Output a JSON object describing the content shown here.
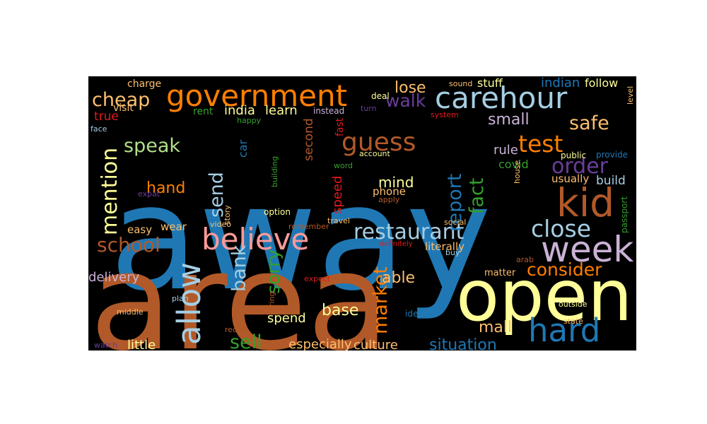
{
  "word_cloud": {
    "background": "#000000",
    "words": [
      {
        "text": "away",
        "color": "#1f78b4"
      },
      {
        "text": "area",
        "color": "#b15928"
      },
      {
        "text": "open",
        "color": "#ffff99"
      },
      {
        "text": "government",
        "color": "#ff7f00"
      },
      {
        "text": "carehour",
        "color": "#a6cee3"
      },
      {
        "text": "believe",
        "color": "#fb9a99"
      },
      {
        "text": "kid",
        "color": "#b15928"
      },
      {
        "text": "week",
        "color": "#cab2d6"
      },
      {
        "text": "hard",
        "color": "#1f78b4"
      },
      {
        "text": "allow",
        "color": "#a6cee3"
      },
      {
        "text": "restaurant",
        "color": "#a6cee3"
      },
      {
        "text": "cheap",
        "color": "#fdbf6f"
      },
      {
        "text": "guess",
        "color": "#b15928"
      },
      {
        "text": "test",
        "color": "#ff7f00"
      },
      {
        "text": "safe",
        "color": "#fdbf6f"
      },
      {
        "text": "order",
        "color": "#6a3d9a"
      },
      {
        "text": "close",
        "color": "#a6cee3"
      },
      {
        "text": "mention",
        "color": "#ffff99"
      },
      {
        "text": "school",
        "color": "#b15928"
      },
      {
        "text": "speak",
        "color": "#b2df8a"
      },
      {
        "text": "send",
        "color": "#a6cee3"
      },
      {
        "text": "report",
        "color": "#1f78b4"
      },
      {
        "text": "fact",
        "color": "#33a02c"
      },
      {
        "text": "market",
        "color": "#ff7f00"
      },
      {
        "text": "bank",
        "color": "#a6cee3"
      },
      {
        "text": "sorry",
        "color": "#33a02c"
      },
      {
        "text": "sell",
        "color": "#33a02c"
      },
      {
        "text": "consider",
        "color": "#ff7f00"
      },
      {
        "text": "walk",
        "color": "#6a3d9a"
      },
      {
        "text": "lose",
        "color": "#fdbf6f"
      },
      {
        "text": "small",
        "color": "#cab2d6"
      },
      {
        "text": "hand",
        "color": "#ff7f00"
      },
      {
        "text": "mind",
        "color": "#ffff99"
      },
      {
        "text": "able",
        "color": "#fdbf6f"
      },
      {
        "text": "base",
        "color": "#ffff99"
      },
      {
        "text": "mall",
        "color": "#fdbf6f"
      },
      {
        "text": "situation",
        "color": "#1f78b4"
      },
      {
        "text": "delivery",
        "color": "#cab2d6"
      },
      {
        "text": "culture",
        "color": "#fdbf6f"
      },
      {
        "text": "little",
        "color": "#ffff99"
      },
      {
        "text": "especially",
        "color": "#fdbf6f"
      },
      {
        "text": "spend",
        "color": "#ffff99"
      },
      {
        "text": "india",
        "color": "#ffff99"
      },
      {
        "text": "learn",
        "color": "#ffff99"
      },
      {
        "text": "rule",
        "color": "#cab2d6"
      },
      {
        "text": "covid",
        "color": "#33a02c"
      },
      {
        "text": "indian",
        "color": "#1f78b4"
      },
      {
        "text": "follow",
        "color": "#ffff99"
      },
      {
        "text": "stuff",
        "color": "#ffff99"
      },
      {
        "text": "build",
        "color": "#a6cee3"
      },
      {
        "text": "usually",
        "color": "#fdbf6f"
      },
      {
        "text": "phone",
        "color": "#fdbf6f"
      },
      {
        "text": "speed",
        "color": "#e31a1c"
      },
      {
        "text": "true",
        "color": "#e31a1c"
      },
      {
        "text": "visit",
        "color": "#fdbf6f"
      },
      {
        "text": "charge",
        "color": "#fdbf6f"
      },
      {
        "text": "rent",
        "color": "#33a02c"
      },
      {
        "text": "easy",
        "color": "#fdbf6f"
      },
      {
        "text": "wear",
        "color": "#fdbf6f"
      },
      {
        "text": "literally",
        "color": "#fdbf6f"
      },
      {
        "text": "matter",
        "color": "#fdbf6f"
      },
      {
        "text": "second",
        "color": "#b15928"
      },
      {
        "text": "car",
        "color": "#1f78b4"
      },
      {
        "text": "happy",
        "color": "#33a02c"
      },
      {
        "text": "instead",
        "color": "#cab2d6"
      },
      {
        "text": "turn",
        "color": "#6a3d9a"
      },
      {
        "text": "fast",
        "color": "#e31a1c"
      },
      {
        "text": "deal",
        "color": "#ffff99"
      },
      {
        "text": "sound",
        "color": "#fdbf6f"
      },
      {
        "text": "system",
        "color": "#e31a1c"
      },
      {
        "text": "account",
        "color": "#ffff99"
      },
      {
        "text": "word",
        "color": "#33a02c"
      },
      {
        "text": "public",
        "color": "#ffff99"
      },
      {
        "text": "provide",
        "color": "#1f78b4"
      },
      {
        "text": "level",
        "color": "#fdbf6f"
      },
      {
        "text": "passport",
        "color": "#33a02c"
      },
      {
        "text": "house",
        "color": "#fdbf6f"
      },
      {
        "text": "face",
        "color": "#a6cee3"
      },
      {
        "text": "building",
        "color": "#33a02c"
      },
      {
        "text": "expat",
        "color": "#6a3d9a"
      },
      {
        "text": "story",
        "color": "#fdbf6f"
      },
      {
        "text": "video",
        "color": "#fdbf6f"
      },
      {
        "text": "apply",
        "color": "#b15928"
      },
      {
        "text": "option",
        "color": "#ffff99"
      },
      {
        "text": "remember",
        "color": "#b15928"
      },
      {
        "text": "social",
        "color": "#fdbf6f"
      },
      {
        "text": "travel",
        "color": "#fdbf6f"
      },
      {
        "text": "buy",
        "color": "#a6cee3"
      },
      {
        "text": "definitely",
        "color": "#e31a1c"
      },
      {
        "text": "arab",
        "color": "#b15928"
      },
      {
        "text": "expect",
        "color": "#e31a1c"
      },
      {
        "text": "bring",
        "color": "#b15928"
      },
      {
        "text": "plan",
        "color": "#a6cee3"
      },
      {
        "text": "idea",
        "color": "#1f78b4"
      },
      {
        "text": "outside",
        "color": "#ffff99"
      },
      {
        "text": "state",
        "color": "#fdbf6f"
      },
      {
        "text": "middle",
        "color": "#fdbf6f"
      },
      {
        "text": "reddit",
        "color": "#b15928"
      },
      {
        "text": "watch",
        "color": "#6a3d9a"
      }
    ]
  }
}
